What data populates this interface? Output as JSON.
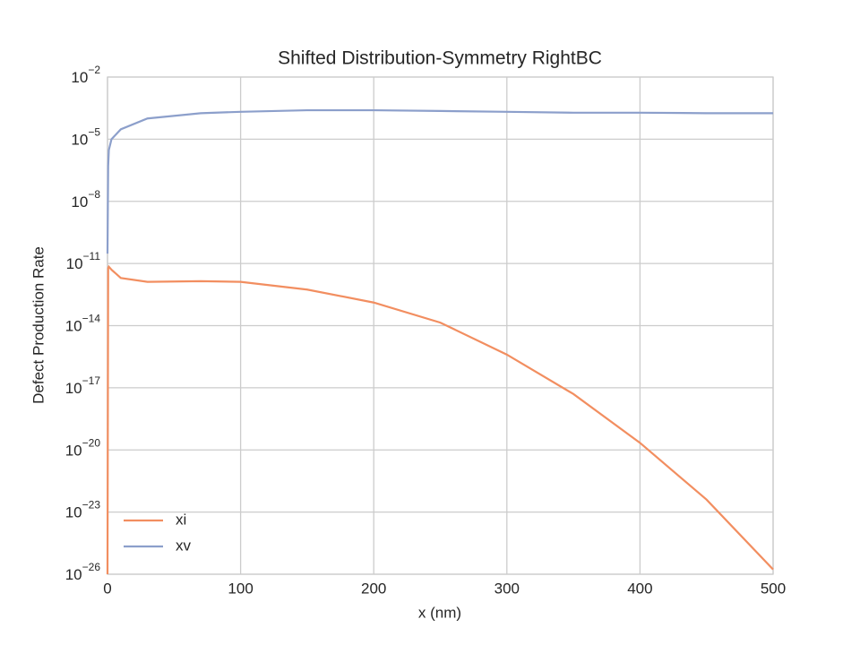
{
  "chart_data": {
    "type": "line",
    "title": "Shifted Distribution-Symmetry RightBC",
    "xlabel": "x (nm)",
    "ylabel": "Defect Production Rate",
    "x": [
      0,
      0.5,
      1,
      3,
      10,
      30,
      70,
      100,
      150,
      200,
      250,
      300,
      350,
      400,
      450,
      500
    ],
    "series": [
      {
        "name": "xi",
        "color": "#f28e60",
        "values": [
          1e-26,
          6e-12,
          7e-12,
          5e-12,
          2e-12,
          1.3e-12,
          1.4e-12,
          1.3e-12,
          5.5e-13,
          1.3e-13,
          1.4e-14,
          4e-16,
          5e-18,
          2.2e-20,
          4e-23,
          1.7e-26
        ]
      },
      {
        "name": "xv",
        "color": "#8c9fcb",
        "values": [
          3e-11,
          5e-07,
          3e-06,
          1e-05,
          3e-05,
          0.0001,
          0.00018,
          0.00021,
          0.00025,
          0.00025,
          0.00023,
          0.00021,
          0.00019,
          0.00019,
          0.00018,
          0.00018
        ]
      }
    ],
    "xlim": [
      0,
      500
    ],
    "xticks": [
      0,
      100,
      200,
      300,
      400,
      500
    ],
    "ylim": [
      1e-26,
      0.01
    ],
    "ylog": true,
    "yticks": [
      {
        "value": 1e-26,
        "label": "10",
        "exponent": "−26"
      },
      {
        "value": 1e-23,
        "label": "10",
        "exponent": "−23"
      },
      {
        "value": 1e-20,
        "label": "10",
        "exponent": "−20"
      },
      {
        "value": 1e-17,
        "label": "10",
        "exponent": "−17"
      },
      {
        "value": 1e-14,
        "label": "10",
        "exponent": "−14"
      },
      {
        "value": 1e-11,
        "label": "10",
        "exponent": "−11"
      },
      {
        "value": 1e-08,
        "label": "10",
        "exponent": "−8"
      },
      {
        "value": 1e-05,
        "label": "10",
        "exponent": "−5"
      },
      {
        "value": 0.01,
        "label": "10",
        "exponent": "−2"
      }
    ],
    "grid": true,
    "legend": "lower left"
  }
}
